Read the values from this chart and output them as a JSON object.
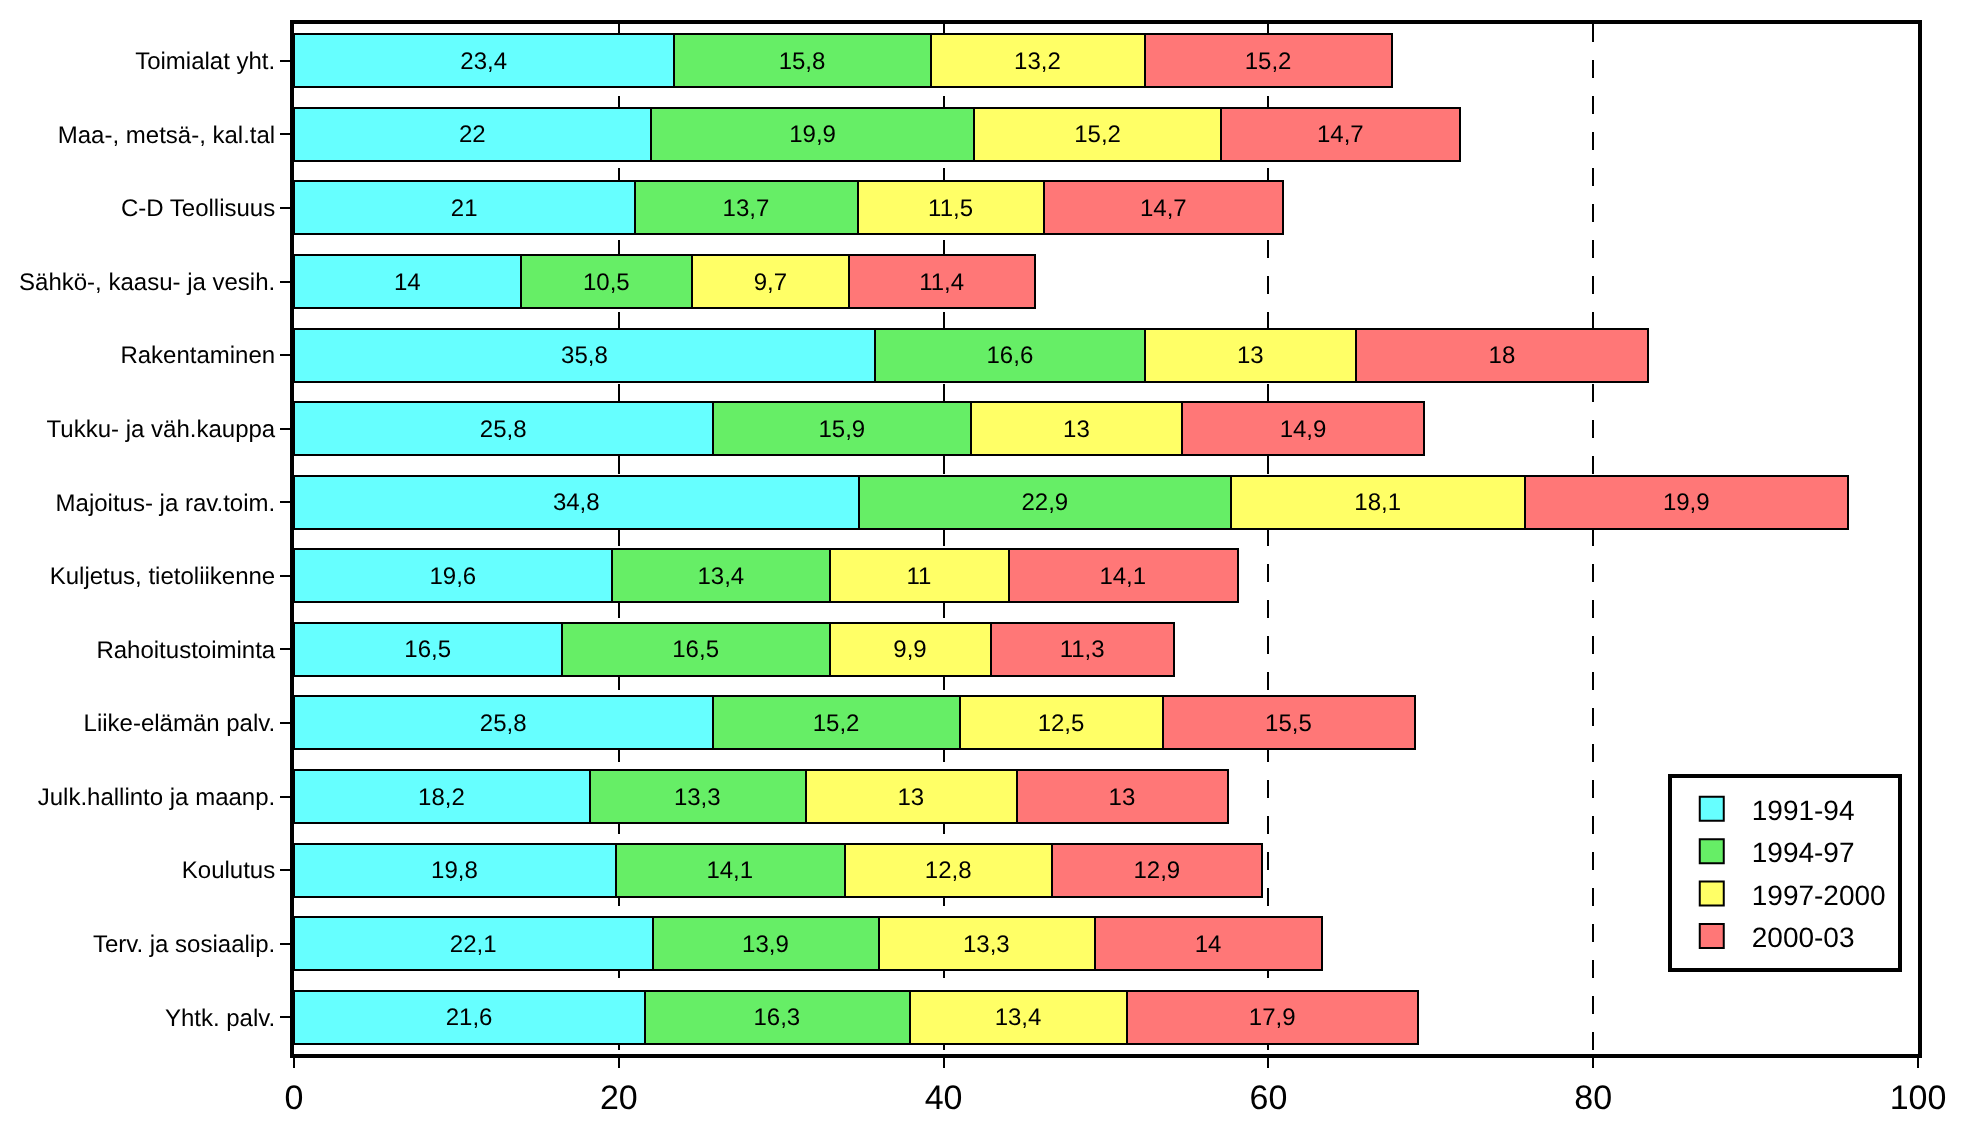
{
  "chart_data": {
    "type": "bar",
    "orientation": "horizontal",
    "stacked": true,
    "categories": [
      "Toimialat yht.",
      "Maa-, metsä-, kal.tal",
      "C-D Teollisuus",
      "Sähkö-, kaasu- ja vesih.",
      "Rakentaminen",
      "Tukku- ja väh.kauppa",
      "Majoitus- ja rav.toim.",
      "Kuljetus, tietoliikenne",
      "Rahoitustoiminta",
      "Liike-elämän palv.",
      "Julk.hallinto ja maanp.",
      "Koulutus",
      "Terv. ja sosiaalip.",
      "Yhtk. palv."
    ],
    "series": [
      {
        "name": "1991-94",
        "color": "#66ffff",
        "values": [
          23.4,
          22,
          21,
          14,
          35.8,
          25.8,
          34.8,
          19.6,
          16.5,
          25.8,
          18.2,
          19.8,
          22.1,
          21.6
        ],
        "value_labels": [
          "23,4",
          "22",
          "21",
          "14",
          "35,8",
          "25,8",
          "34,8",
          "19,6",
          "16,5",
          "25,8",
          "18,2",
          "19,8",
          "22,1",
          "21,6"
        ]
      },
      {
        "name": "1994-97",
        "color": "#66ee66",
        "values": [
          15.8,
          19.9,
          13.7,
          10.5,
          16.6,
          15.9,
          22.9,
          13.4,
          16.5,
          15.2,
          13.3,
          14.1,
          13.9,
          16.3
        ],
        "value_labels": [
          "15,8",
          "19,9",
          "13,7",
          "10,5",
          "16,6",
          "15,9",
          "22,9",
          "13,4",
          "16,5",
          "15,2",
          "13,3",
          "14,1",
          "13,9",
          "16,3"
        ]
      },
      {
        "name": "1997-2000",
        "color": "#ffff66",
        "values": [
          13.2,
          15.2,
          11.5,
          9.7,
          13,
          13,
          18.1,
          11,
          9.9,
          12.5,
          13,
          12.8,
          13.3,
          13.4
        ],
        "value_labels": [
          "13,2",
          "15,2",
          "11,5",
          "9,7",
          "13",
          "13",
          "18,1",
          "11",
          "9,9",
          "12,5",
          "13",
          "12,8",
          "13,3",
          "13,4"
        ]
      },
      {
        "name": "2000-03",
        "color": "#ff7777",
        "values": [
          15.2,
          14.7,
          14.7,
          11.4,
          18,
          14.9,
          19.9,
          14.1,
          11.3,
          15.5,
          13,
          12.9,
          14,
          17.9
        ],
        "value_labels": [
          "15,2",
          "14,7",
          "14,7",
          "11,4",
          "18",
          "14,9",
          "19,9",
          "14,1",
          "11,3",
          "15,5",
          "13",
          "12,9",
          "14",
          "17,9"
        ]
      }
    ],
    "xlim": [
      0,
      100
    ],
    "xticks": [
      0,
      20,
      40,
      60,
      80,
      100
    ],
    "grid": "x",
    "line_style": "dashed",
    "legend": "bottom right"
  }
}
